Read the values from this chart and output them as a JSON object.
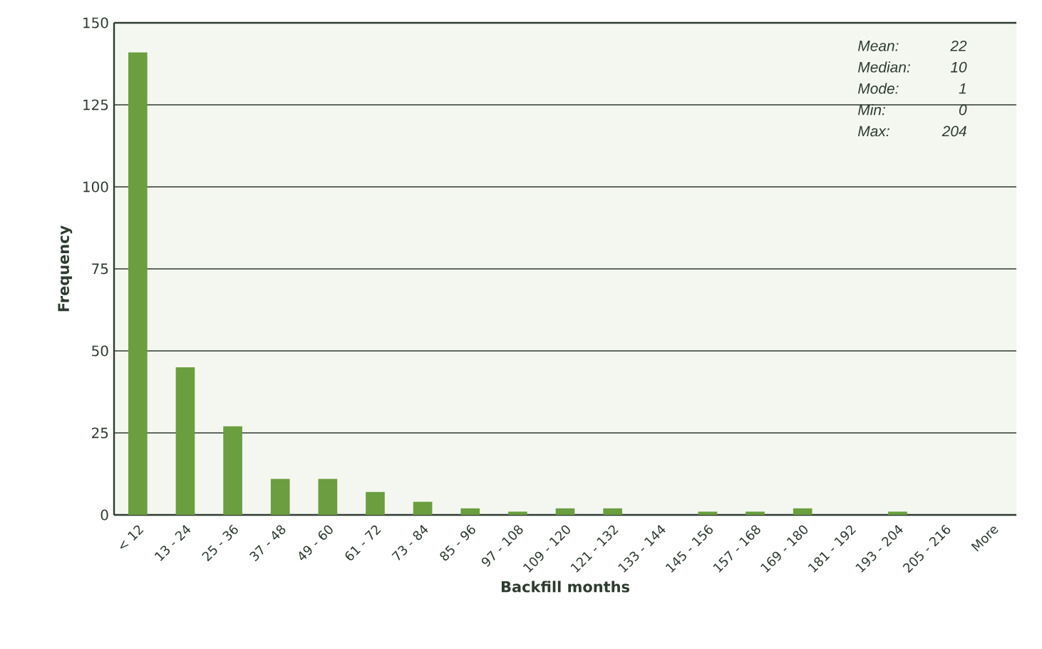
{
  "chart_data": {
    "type": "bar",
    "xlabel": "Backfill months",
    "ylabel": "Frequency",
    "categories": [
      "< 12",
      "13 - 24",
      "25 - 36",
      "37 - 48",
      "49 - 60",
      "61 - 72",
      "73 - 84",
      "85 - 96",
      "97 - 108",
      "109 - 120",
      "121 - 132",
      "133 - 144",
      "145 - 156",
      "157 - 168",
      "169 - 180",
      "181 - 192",
      "193 - 204",
      "205 - 216",
      "More"
    ],
    "values": [
      141,
      45,
      27,
      11,
      11,
      7,
      4,
      2,
      1,
      2,
      2,
      0,
      1,
      1,
      2,
      0,
      1,
      0,
      0
    ],
    "color": "#6a9e3f",
    "ylim": [
      0,
      150
    ],
    "yticks": [
      0,
      25,
      50,
      75,
      100,
      125,
      150
    ],
    "grid": "y",
    "annotations": [
      "Mean:",
      "22",
      "Median:",
      "10",
      "Mode:",
      "1",
      "Min:",
      "0",
      "Max:",
      "204"
    ]
  }
}
